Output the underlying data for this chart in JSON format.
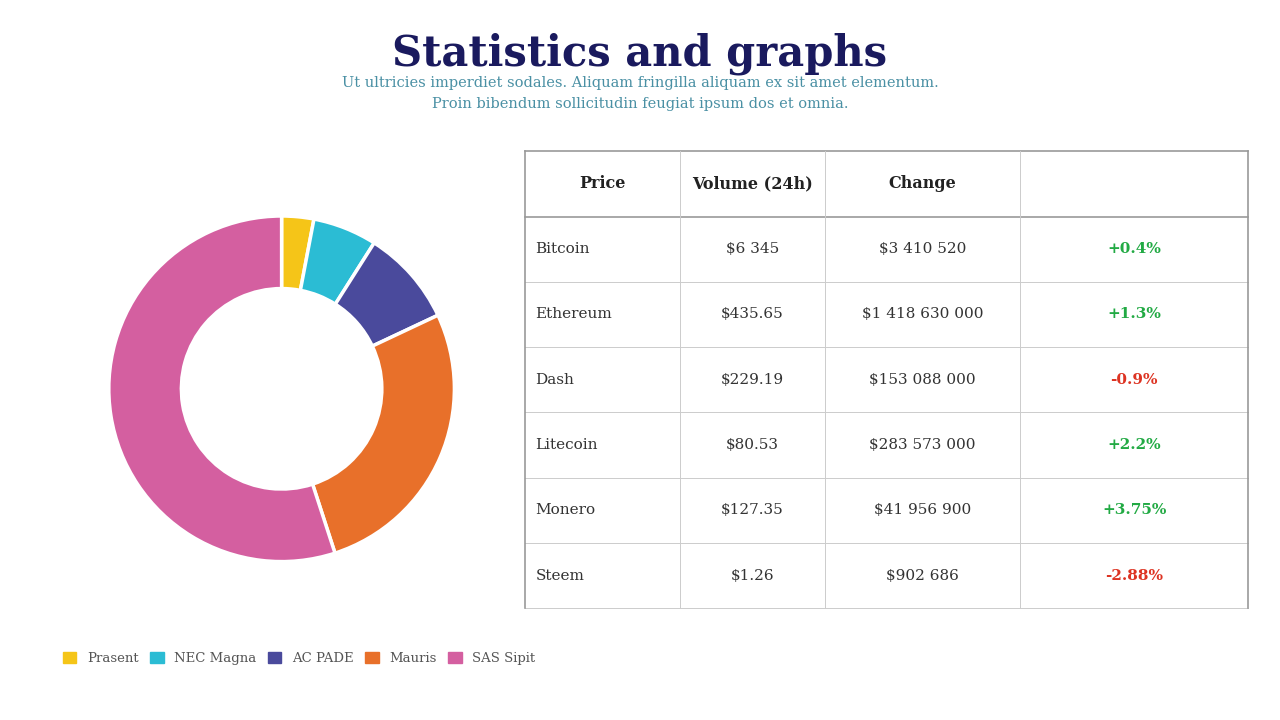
{
  "title": "Statistics and graphs",
  "subtitle_line1": "Ut ultricies imperdiet sodales. Aliquam fringilla aliquam ex sit amet elementum.",
  "subtitle_line2": "Proin bibendum sollicitudin feugiat ipsum dos et omnia.",
  "title_color": "#1a1a5e",
  "subtitle_color": "#4a90a4",
  "donut_segments": [
    {
      "label": "Prasent",
      "value": 3,
      "color": "#f5c518"
    },
    {
      "label": "NEC Magna",
      "value": 6,
      "color": "#2bbcd4"
    },
    {
      "label": "AC PADE",
      "value": 9,
      "color": "#4a4a9c"
    },
    {
      "label": "Mauris",
      "value": 27,
      "color": "#e8702a"
    },
    {
      "label": "SAS Sipit",
      "value": 55,
      "color": "#d45fa0"
    }
  ],
  "table_rows": [
    {
      "name": "Bitcoin",
      "price": "$6 345",
      "volume": "$3 410 520",
      "change": "+0.4%",
      "change_color": "#22aa44"
    },
    {
      "name": "Ethereum",
      "price": "$435.65",
      "volume": "$1 418 630 000",
      "change": "+1.3%",
      "change_color": "#22aa44"
    },
    {
      "name": "Dash",
      "price": "$229.19",
      "volume": "$153 088 000",
      "change": "-0.9%",
      "change_color": "#dd3322"
    },
    {
      "name": "Litecoin",
      "price": "$80.53",
      "volume": "$283 573 000",
      "change": "+2.2%",
      "change_color": "#22aa44"
    },
    {
      "name": "Monero",
      "price": "$127.35",
      "volume": "$41 956 900",
      "change": "+3.75%",
      "change_color": "#22aa44"
    },
    {
      "name": "Steem",
      "price": "$1.26",
      "volume": "$902 686",
      "change": "-2.88%",
      "change_color": "#dd3322"
    }
  ],
  "background_color": "#ffffff"
}
